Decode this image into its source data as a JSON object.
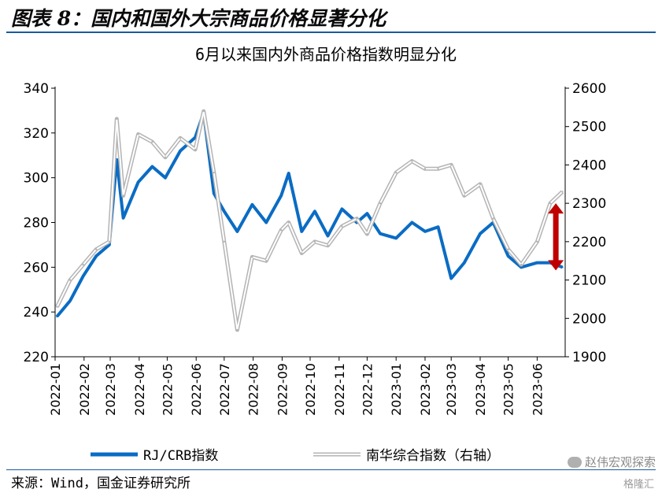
{
  "figure_title": "图表 8：国内和国外大宗商品价格显著分化",
  "source": "来源：Wind，国金证券研究所",
  "watermark": "赵伟宏观探索",
  "watermark_logo": "格隆汇",
  "colors": {
    "rj": "#0a6cc4",
    "nanhua": "#b4b4b4",
    "arrow": "#c00000",
    "rule": "#1a5aa0"
  },
  "chart_data": {
    "type": "line",
    "title": "6月以来国内外商品价格指数明显分化",
    "x_ticks": [
      "2022-01",
      "2022-02",
      "2022-03",
      "2022-04",
      "2022-05",
      "2022-06",
      "2022-07",
      "2022-08",
      "2022-09",
      "2022-10",
      "2022-11",
      "2022-12",
      "2023-01",
      "2023-02",
      "2023-03",
      "2023-04",
      "2023-05",
      "2023-06"
    ],
    "y_left": {
      "ticks": [
        220,
        240,
        260,
        280,
        300,
        320,
        340
      ],
      "lim": [
        220,
        340
      ]
    },
    "y_right": {
      "ticks": [
        1900,
        2000,
        2100,
        2200,
        2300,
        2400,
        2500,
        2600
      ],
      "lim": [
        1900,
        2600
      ]
    },
    "legend": "bottom",
    "series": [
      {
        "name": "RJ/CRB指数",
        "axis": "left",
        "x": [
          "2022-01-03",
          "2022-01-17",
          "2022-01-31",
          "2022-02-14",
          "2022-02-28",
          "2022-03-08",
          "2022-03-15",
          "2022-03-31",
          "2022-04-15",
          "2022-04-29",
          "2022-05-15",
          "2022-05-31",
          "2022-06-09",
          "2022-06-20",
          "2022-07-01",
          "2022-07-15",
          "2022-07-31",
          "2022-08-15",
          "2022-08-31",
          "2022-09-08",
          "2022-09-22",
          "2022-10-06",
          "2022-10-20",
          "2022-11-04",
          "2022-11-20",
          "2022-12-01",
          "2022-12-15",
          "2023-01-01",
          "2023-01-18",
          "2023-02-01",
          "2023-02-15",
          "2023-03-01",
          "2023-03-15",
          "2023-04-01",
          "2023-04-15",
          "2023-05-01",
          "2023-05-15",
          "2023-06-01",
          "2023-06-15",
          "2023-06-28"
        ],
        "values": [
          238,
          245,
          256,
          265,
          270,
          308,
          282,
          298,
          305,
          300,
          312,
          318,
          329,
          293,
          285,
          276,
          288,
          280,
          292,
          302,
          276,
          285,
          274,
          286,
          280,
          284,
          275,
          273,
          280,
          276,
          278,
          255,
          262,
          275,
          280,
          265,
          260,
          262,
          262,
          260
        ]
      },
      {
        "name": "南华综合指数（右轴）",
        "axis": "right",
        "x": [
          "2022-01-03",
          "2022-01-17",
          "2022-01-31",
          "2022-02-14",
          "2022-02-28",
          "2022-03-08",
          "2022-03-15",
          "2022-03-31",
          "2022-04-15",
          "2022-04-29",
          "2022-05-15",
          "2022-05-31",
          "2022-06-09",
          "2022-06-20",
          "2022-07-01",
          "2022-07-15",
          "2022-07-31",
          "2022-08-15",
          "2022-08-31",
          "2022-09-08",
          "2022-09-22",
          "2022-10-06",
          "2022-10-20",
          "2022-11-04",
          "2022-11-20",
          "2022-12-01",
          "2022-12-15",
          "2023-01-01",
          "2023-01-18",
          "2023-02-01",
          "2023-02-15",
          "2023-03-01",
          "2023-03-15",
          "2023-04-01",
          "2023-04-15",
          "2023-05-01",
          "2023-05-15",
          "2023-06-01",
          "2023-06-15",
          "2023-06-28"
        ],
        "values": [
          2030,
          2100,
          2140,
          2180,
          2200,
          2520,
          2320,
          2480,
          2460,
          2420,
          2470,
          2440,
          2540,
          2380,
          2200,
          1970,
          2160,
          2150,
          2230,
          2250,
          2170,
          2200,
          2190,
          2240,
          2260,
          2220,
          2300,
          2380,
          2410,
          2390,
          2390,
          2400,
          2320,
          2350,
          2260,
          2180,
          2140,
          2200,
          2300,
          2330
        ]
      }
    ],
    "annotation": {
      "type": "double-arrow",
      "x": "2023-06-21",
      "from": 2300,
      "to": 2125,
      "axis": "right"
    }
  }
}
